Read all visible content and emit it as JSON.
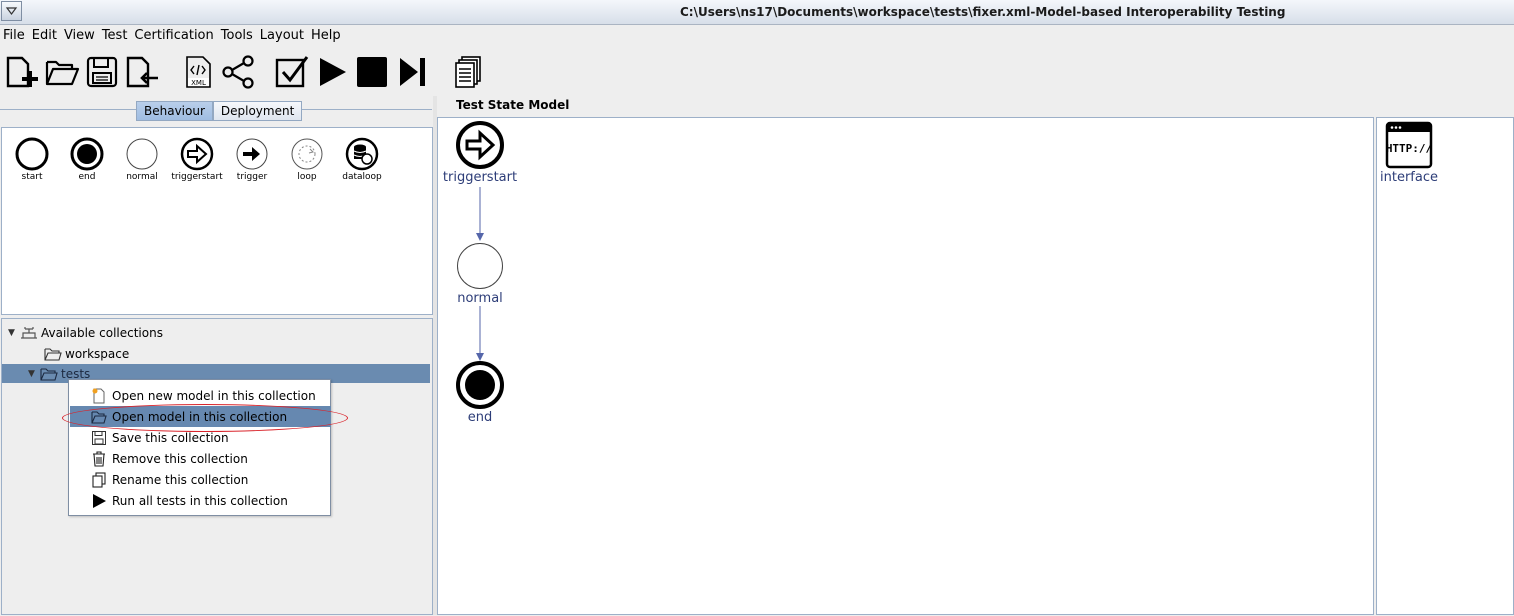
{
  "window": {
    "title": "C:\\Users\\ns17\\Documents\\workspace\\tests\\fixer.xml-Model-based Interoperability Testing"
  },
  "menu": [
    "File",
    "Edit",
    "View",
    "Test",
    "Certification",
    "Tools",
    "Layout",
    "Help"
  ],
  "toolbar": {
    "xml_label": "XML"
  },
  "tabs": {
    "behaviour": "Behaviour",
    "deployment": "Deployment",
    "active": "Behaviour"
  },
  "palette": [
    "start",
    "end",
    "normal",
    "triggerstart",
    "trigger",
    "loop",
    "dataloop"
  ],
  "tree": {
    "root": "Available collections",
    "workspace": "workspace",
    "tests": "tests"
  },
  "context_menu": {
    "items": [
      "Open new model in this collection",
      "Open model in this collection",
      "Save this collection",
      "Remove this collection",
      "Rename this collection",
      "Run all tests in this collection"
    ],
    "highlighted": "Open model in this collection"
  },
  "canvas": {
    "title": "Test State Model",
    "nodes": {
      "triggerstart": "triggerstart",
      "normal": "normal",
      "end": "end"
    }
  },
  "deployment": {
    "interface_label": "interface",
    "http_label": "HTTP://"
  },
  "colors": {
    "selection": "#6a8bb0",
    "node_label": "#2d3d78",
    "edge": "#5566aa",
    "annotation_oval": "#d9242b"
  }
}
